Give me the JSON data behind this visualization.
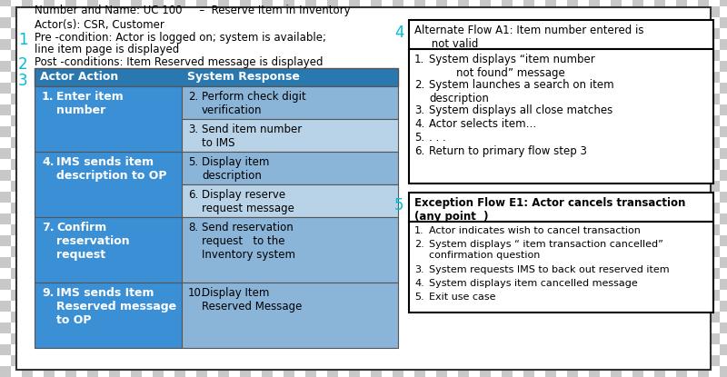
{
  "title_line1": "Number and Name: UC 100     –  Reserve Item in Inventory",
  "title_line2": "Actor(s): CSR, Customer",
  "pre_cond_line1": "Pre -condition: Actor is logged on; system is available;",
  "pre_cond_line2": "line item page is displayed",
  "post_cond": "Post -conditions: Item Reserved message is displayed",
  "side_num_color": "#00bcd4",
  "table_header_left": "Actor Action",
  "table_header_right": "System Response",
  "table_header_bg": "#2979b0",
  "actor_col_bg": "#3b8fd4",
  "system_col_bg_dark": "#8ab4d8",
  "system_col_bg_light": "#b8d3e8",
  "table_rows": [
    {
      "actor_num": "1.",
      "actor_text": "Enter item\nnumber",
      "system_items": [
        {
          "num": "2.",
          "text": "Perform check digit\nverification"
        },
        {
          "num": "3.",
          "text": "Send item number\nto IMS"
        }
      ]
    },
    {
      "actor_num": "4.",
      "actor_text": "IMS sends item\ndescription to OP",
      "system_items": [
        {
          "num": "5.",
          "text": "Display item\ndescription"
        },
        {
          "num": "6.",
          "text": "Display reserve\nrequest message"
        }
      ]
    },
    {
      "actor_num": "7.",
      "actor_text": "Confirm\nreservation\nrequest",
      "system_items": [
        {
          "num": "8.",
          "text": "Send reservation\nrequest   to the\nInventory system"
        }
      ]
    },
    {
      "actor_num": "9.",
      "actor_text": "IMS sends Item\nReserved message\nto OP",
      "system_items": [
        {
          "num": "10.",
          "text": "Display Item\nReserved Message"
        }
      ]
    }
  ],
  "alt_flow_title": "Alternate Flow A1: Item number entered is\n     not valid",
  "alt_flow_items": [
    {
      "num": "1.",
      "text": "System displays “item number\n        not found” message"
    },
    {
      "num": "2.",
      "text": "System launches a search on item\ndescription"
    },
    {
      "num": "3.",
      "text": "System displays all close matches"
    },
    {
      "num": "4.",
      "text": "Actor selects item…"
    },
    {
      "num": "5.",
      "text": ". . ."
    },
    {
      "num": "6.",
      "text": "Return to primary flow step 3"
    }
  ],
  "exc_flow_title": "Exception Flow E1: Actor cancels transaction\n(any point  )",
  "exc_flow_items": [
    {
      "num": "1.",
      "text": "Actor indicates wish to cancel transaction"
    },
    {
      "num": "2.",
      "text": "System displays “ item transaction cancelled”\nconfirmation question"
    },
    {
      "num": "3.",
      "text": "System requests IMS to back out reserved item"
    },
    {
      "num": "4.",
      "text": "System displays item cancelled message"
    },
    {
      "num": "5.",
      "text": "Exit use case"
    }
  ]
}
